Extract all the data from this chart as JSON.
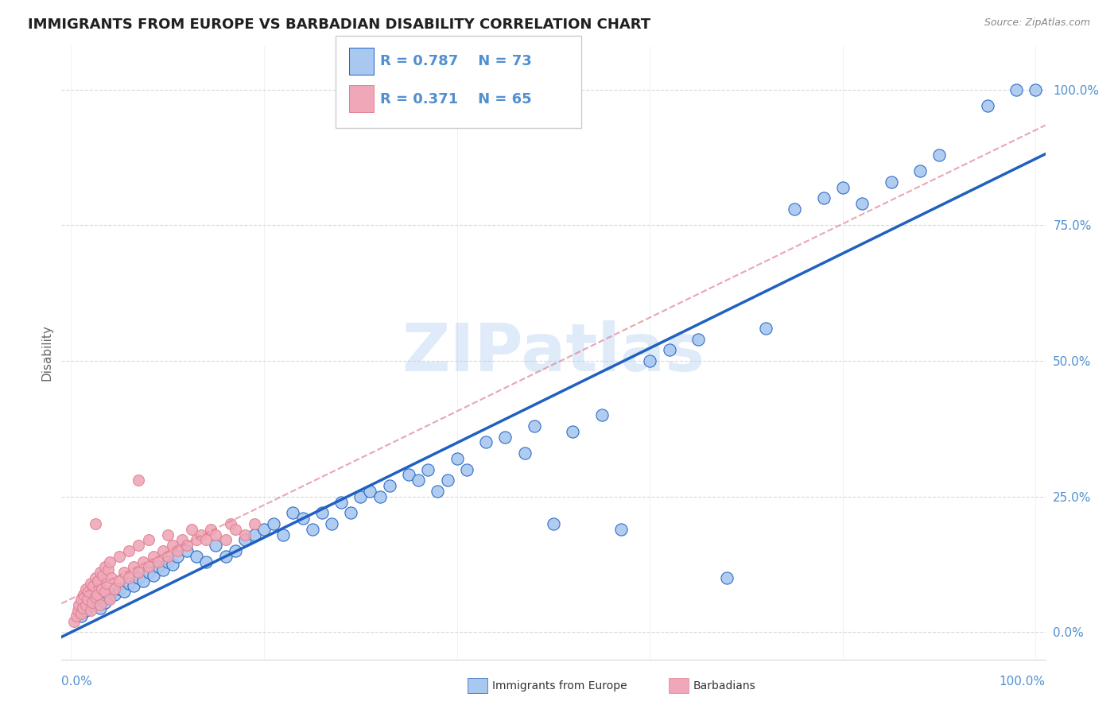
{
  "title": "IMMIGRANTS FROM EUROPE VS BARBADIAN DISABILITY CORRELATION CHART",
  "source": "Source: ZipAtlas.com",
  "ylabel": "Disability",
  "legend_r_blue": "R = 0.787",
  "legend_n_blue": "N = 73",
  "legend_r_pink": "R = 0.371",
  "legend_n_pink": "N = 65",
  "watermark": "ZIPatlas",
  "blue_color": "#a8c8f0",
  "pink_color": "#f0a8b8",
  "line_blue": "#2060c0",
  "line_pink": "#e08090",
  "title_color": "#202020",
  "axis_label_color": "#5090d0",
  "grid_color": "#d8d8d8",
  "blue_x": [
    1.0,
    1.5,
    2.0,
    2.5,
    3.0,
    3.5,
    4.0,
    4.5,
    5.0,
    5.5,
    6.0,
    6.5,
    7.0,
    7.5,
    8.0,
    8.5,
    9.0,
    9.5,
    10.0,
    10.5,
    11.0,
    12.0,
    13.0,
    14.0,
    15.0,
    16.0,
    17.0,
    18.0,
    19.0,
    20.0,
    21.0,
    22.0,
    23.0,
    24.0,
    25.0,
    26.0,
    27.0,
    28.0,
    29.0,
    30.0,
    31.0,
    32.0,
    33.0,
    35.0,
    36.0,
    37.0,
    38.0,
    39.0,
    40.0,
    41.0,
    43.0,
    45.0,
    47.0,
    48.0,
    50.0,
    52.0,
    55.0,
    57.0,
    60.0,
    62.0,
    65.0,
    68.0,
    72.0,
    75.0,
    78.0,
    80.0,
    82.0,
    85.0,
    88.0,
    90.0,
    95.0,
    98.0,
    100.0
  ],
  "blue_y": [
    3.0,
    4.0,
    5.0,
    6.0,
    4.5,
    5.5,
    6.5,
    7.0,
    8.0,
    7.5,
    9.0,
    8.5,
    10.0,
    9.5,
    11.0,
    10.5,
    12.0,
    11.5,
    13.0,
    12.5,
    14.0,
    15.0,
    14.0,
    13.0,
    16.0,
    14.0,
    15.0,
    17.0,
    18.0,
    19.0,
    20.0,
    18.0,
    22.0,
    21.0,
    19.0,
    22.0,
    20.0,
    24.0,
    22.0,
    25.0,
    26.0,
    25.0,
    27.0,
    29.0,
    28.0,
    30.0,
    26.0,
    28.0,
    32.0,
    30.0,
    35.0,
    36.0,
    33.0,
    38.0,
    20.0,
    37.0,
    40.0,
    19.0,
    50.0,
    52.0,
    54.0,
    10.0,
    56.0,
    78.0,
    80.0,
    82.0,
    79.0,
    83.0,
    85.0,
    88.0,
    97.0,
    100.0,
    100.0
  ],
  "pink_x": [
    0.3,
    0.5,
    0.7,
    0.8,
    1.0,
    1.0,
    1.2,
    1.3,
    1.5,
    1.5,
    1.7,
    1.8,
    2.0,
    2.0,
    2.2,
    2.3,
    2.5,
    2.5,
    2.7,
    2.8,
    3.0,
    3.0,
    3.2,
    3.3,
    3.5,
    3.5,
    3.7,
    3.8,
    4.0,
    4.0,
    4.2,
    4.5,
    5.0,
    5.0,
    5.5,
    6.0,
    6.0,
    6.5,
    7.0,
    7.0,
    7.5,
    8.0,
    8.0,
    8.5,
    9.0,
    9.5,
    10.0,
    10.0,
    10.5,
    11.0,
    11.5,
    12.0,
    12.5,
    13.0,
    13.5,
    14.0,
    14.5,
    15.0,
    16.0,
    16.5,
    17.0,
    18.0,
    19.0,
    7.0,
    2.5
  ],
  "pink_y": [
    2.0,
    3.0,
    4.0,
    5.0,
    3.5,
    6.0,
    4.5,
    7.0,
    5.0,
    8.0,
    6.0,
    7.5,
    4.0,
    9.0,
    5.5,
    8.5,
    6.5,
    10.0,
    7.0,
    9.5,
    5.0,
    11.0,
    8.0,
    10.5,
    7.5,
    12.0,
    9.0,
    11.5,
    6.0,
    13.0,
    10.0,
    8.0,
    9.5,
    14.0,
    11.0,
    10.0,
    15.0,
    12.0,
    11.0,
    16.0,
    13.0,
    12.0,
    17.0,
    14.0,
    13.0,
    15.0,
    14.0,
    18.0,
    16.0,
    15.0,
    17.0,
    16.0,
    19.0,
    17.0,
    18.0,
    17.0,
    19.0,
    18.0,
    17.0,
    20.0,
    19.0,
    18.0,
    20.0,
    28.0,
    20.0
  ]
}
